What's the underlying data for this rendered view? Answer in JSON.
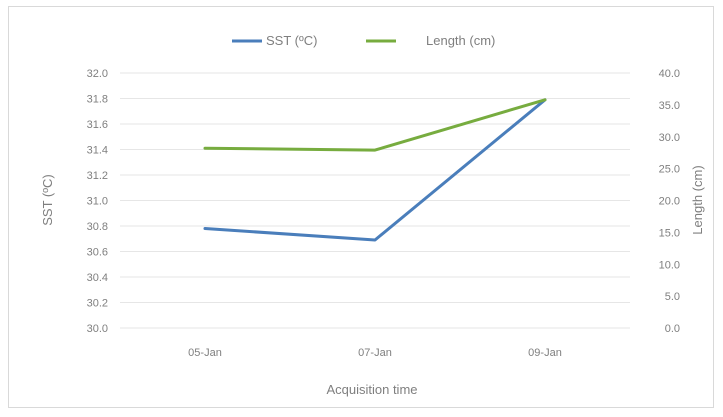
{
  "chart_data": {
    "type": "line",
    "categories": [
      "05-Jan",
      "07-Jan",
      "09-Jan"
    ],
    "series": [
      {
        "name": "SST (ºC)",
        "axis": "left",
        "color": "#4a7ebb",
        "values": [
          30.78,
          30.69,
          31.79
        ]
      },
      {
        "name": "Length (cm)",
        "axis": "right",
        "color": "#77ac3f",
        "values": [
          28.2,
          27.9,
          35.8
        ]
      }
    ],
    "xlabel": "Acquisition time",
    "ylabel_left": "SST (ºC)",
    "ylabel_right": "Length (cm)",
    "ylim_left": [
      30.0,
      32.0
    ],
    "ylim_right": [
      0.0,
      40.0
    ],
    "yticks_left": [
      "30.0",
      "30.2",
      "30.4",
      "30.6",
      "30.8",
      "31.0",
      "31.2",
      "31.4",
      "31.6",
      "31.8",
      "32.0"
    ],
    "yticks_right": [
      "0.0",
      "5.0",
      "10.0",
      "15.0",
      "20.0",
      "25.0",
      "30.0",
      "35.0",
      "40.0"
    ],
    "grid": true,
    "legend_position": "top"
  }
}
